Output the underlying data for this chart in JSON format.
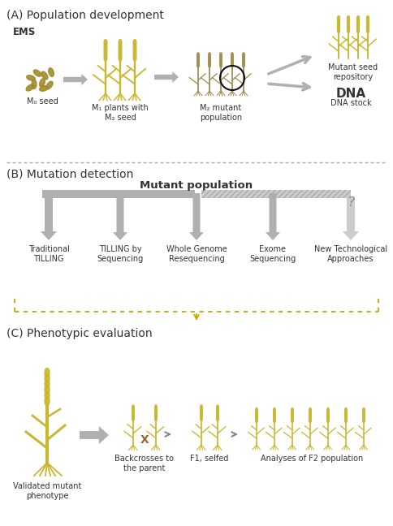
{
  "bg_color": "#ffffff",
  "text_color": "#333333",
  "section_A_title": "(A) Population development",
  "section_B_title": "(B) Mutation detection",
  "section_C_title": "(C) Phenotypic evaluation",
  "ems_label": "EMS",
  "section_A_labels": [
    "M₀ seed",
    "M₁ plants with\nM₂ seed",
    "M₂ mutant\npopulation",
    "Mutant seed\nrepository",
    "DNA stock"
  ],
  "section_B_center_label": "Mutant population",
  "section_B_labels": [
    "Traditional\nTILLING",
    "TILLING by\nSequencing",
    "Whole Genome\nResequencing",
    "Exome\nSequencing",
    "New Technological\nApproaches"
  ],
  "section_C_labels": [
    "Validated mutant\nphenotype",
    "Backcrosses to\nthe parent",
    "F1, selfed",
    "Analyses of F2 population"
  ],
  "arrow_color": "#b0b0b0",
  "arrow_color_light": "#cccccc",
  "dashed_color": "#aaaaaa",
  "bracket_color": "#c8a800",
  "seed_color": "#a08828",
  "plant_yellow": "#c8b830",
  "plant_brown": "#9c8c50"
}
